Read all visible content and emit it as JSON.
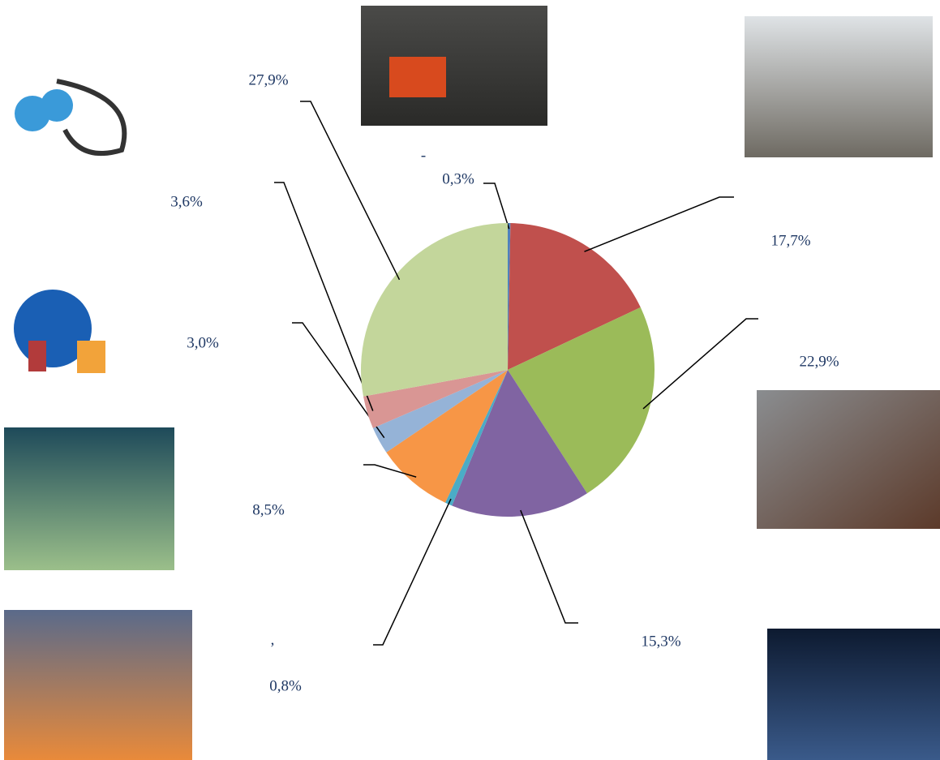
{
  "chart_data": {
    "type": "pie",
    "values": [
      0.3,
      17.7,
      22.9,
      15.3,
      0.8,
      8.5,
      3.0,
      3.6,
      27.9
    ],
    "value_labels": [
      "0,3%",
      "17,7%",
      "22,9%",
      "15,3%",
      "0,8%",
      "8,5%",
      "3,0%",
      "3,6%",
      "27,9%"
    ],
    "colors": [
      "#4f81bd",
      "#c0504d",
      "#9bbb59",
      "#8064a2",
      "#4bacc6",
      "#f79646",
      "#95b3d7",
      "#d99694",
      "#c3d69b"
    ],
    "annotations": [
      "-",
      ","
    ]
  }
}
